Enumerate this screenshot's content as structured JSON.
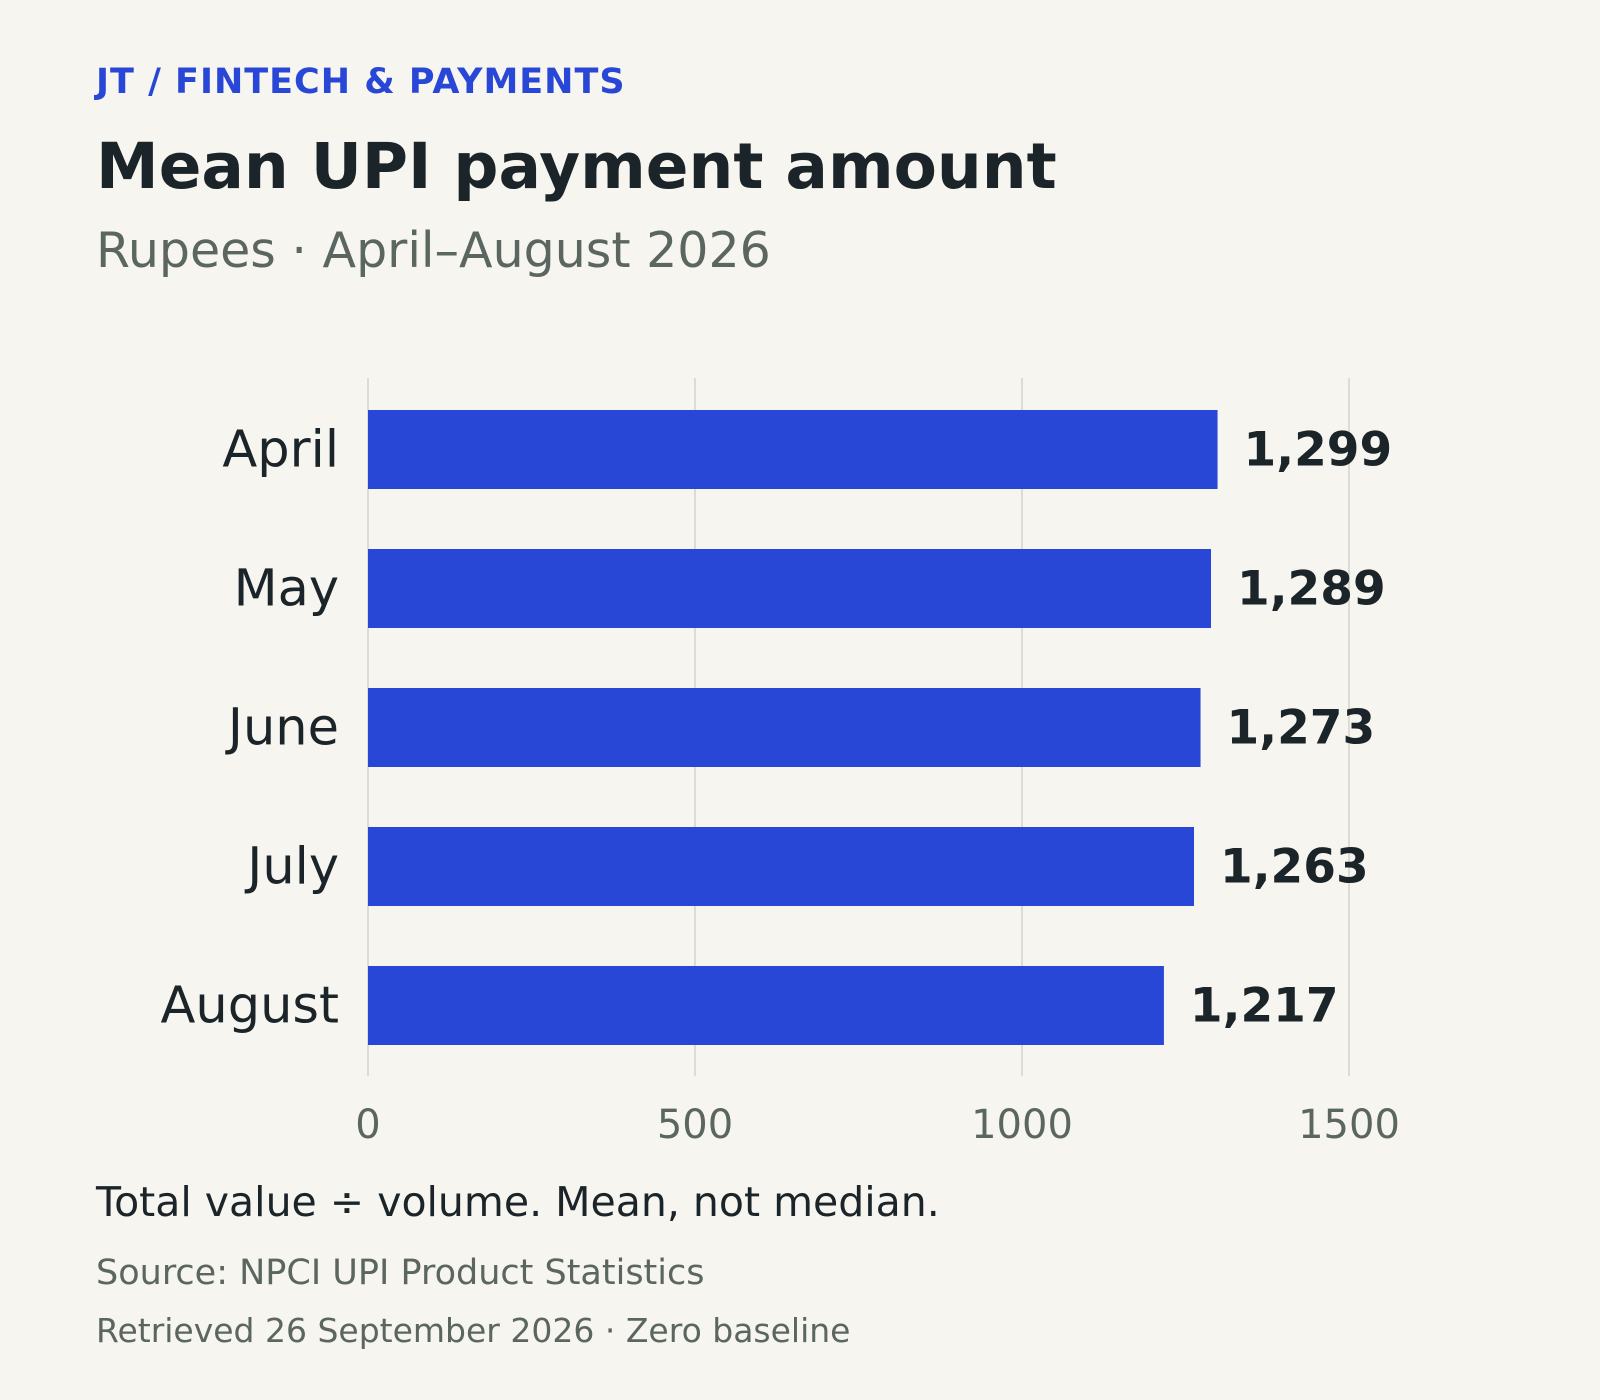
{
  "header": {
    "kicker": "JT / FINTECH & PAYMENTS",
    "title": "Mean UPI payment amount",
    "subtitle": "Rupees · April–August 2026"
  },
  "footer": {
    "note": "Total value ÷ volume. Mean, not median.",
    "source": "Source: NPCI UPI Product Statistics",
    "retrieved": "Retrieved 26 September 2026 · Zero baseline"
  },
  "colors": {
    "accent": "#2947d6",
    "text": "#1b2428",
    "muted": "#5a665f",
    "grid": "#dcdcd6",
    "background": "#f6f5f0"
  },
  "chart_data": {
    "type": "bar",
    "orientation": "horizontal",
    "categories": [
      "April",
      "May",
      "June",
      "July",
      "August"
    ],
    "values": [
      1299,
      1289,
      1273,
      1263,
      1217
    ],
    "value_labels": [
      "1,299",
      "1,289",
      "1,273",
      "1,263",
      "1,217"
    ],
    "xlim": [
      0,
      1600
    ],
    "xticks": [
      0,
      500,
      1000,
      1500
    ],
    "xtick_labels": [
      "0",
      "500",
      "1000",
      "1500"
    ],
    "grid": "vertical",
    "legend": "none"
  }
}
